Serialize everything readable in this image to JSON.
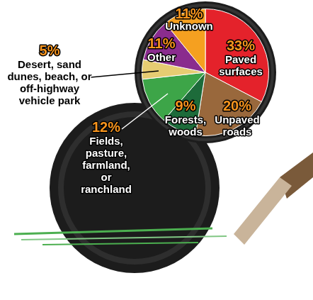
{
  "chart_data": {
    "type": "pie",
    "categories": [
      "Paved surfaces",
      "Unpaved roads",
      "Forests, woods",
      "Fields, pasture, farmland, or ranchland",
      "Desert, sand dunes, beach, or off-highway vehicle park",
      "Other",
      "Unknown"
    ],
    "values": [
      33,
      20,
      9,
      12,
      5,
      11,
      11
    ],
    "value_labels": [
      "33%",
      "20%",
      "9%",
      "12%",
      "5%",
      "11%",
      "11%"
    ],
    "colors": [
      "#e4222b",
      "#99683c",
      "#1d6b3a",
      "#3da548",
      "#e6cc72",
      "#8a2c8e",
      "#f5a020"
    ],
    "data_labels": true
  }
}
